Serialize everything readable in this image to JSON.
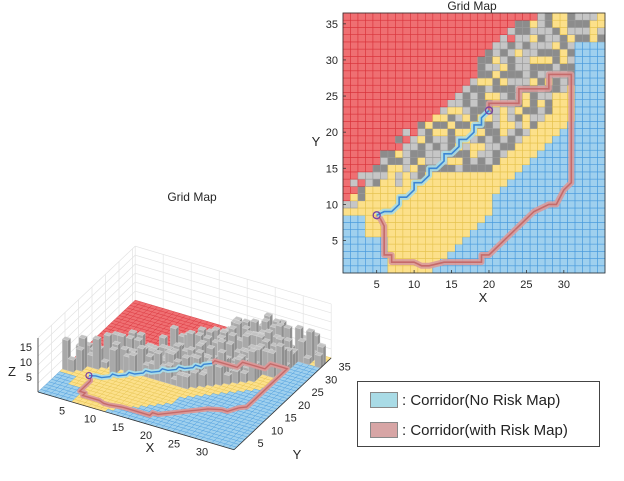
{
  "chart_data": [
    {
      "type": "heatmap",
      "title": "Grid Map",
      "xlabel": "X",
      "ylabel": "Y",
      "xlim": [
        0.5,
        35.5
      ],
      "ylim": [
        0.5,
        36.5
      ],
      "xticks": [
        5,
        10,
        15,
        20,
        25,
        30
      ],
      "yticks": [
        5,
        10,
        15,
        20,
        25,
        30,
        35
      ],
      "grid": true,
      "cell_classes": [
        "safe",
        "risk-low",
        "obstacle",
        "risk-high"
      ],
      "series": [
        {
          "name": "Corridor(No Risk Map)",
          "x": [
            5,
            6,
            7,
            8,
            8,
            9,
            10,
            10,
            11,
            12,
            12,
            13,
            14,
            14,
            15,
            16,
            16,
            17,
            18,
            18,
            19,
            19,
            20
          ],
          "y": [
            8.5,
            9,
            9,
            10,
            11,
            11,
            12,
            13,
            13,
            14,
            15,
            15,
            16,
            17,
            17,
            18,
            19,
            19,
            20,
            21,
            21,
            22,
            23
          ]
        },
        {
          "name": "Corridor(with Risk Map)",
          "x": [
            5,
            5.5,
            6,
            6,
            7,
            7,
            10,
            11,
            12,
            14,
            15,
            17,
            19,
            19,
            20,
            22,
            23,
            25,
            26,
            28,
            29,
            30,
            31,
            31,
            30,
            28,
            28,
            24,
            24,
            22,
            20,
            20,
            20
          ],
          "y": [
            8.5,
            8,
            7,
            3,
            3,
            2,
            2,
            1.5,
            1.5,
            2,
            2,
            2,
            2,
            3,
            3,
            5,
            6,
            8,
            9,
            10,
            10,
            12,
            13,
            28,
            28,
            28,
            26,
            26,
            24,
            24,
            24,
            23.5,
            23
          ]
        }
      ]
    },
    {
      "type": "heatmap",
      "title": "Grid Map",
      "xlabel": "X",
      "ylabel": "Y",
      "zlabel": "Z",
      "xticks": [
        5,
        10,
        15,
        20,
        25,
        30
      ],
      "yticks": [
        5,
        10,
        15,
        20,
        25,
        30,
        35
      ],
      "zticks": [
        5,
        10,
        15
      ]
    }
  ],
  "legend": {
    "items": [
      {
        "label": ": Corridor(No Risk Map)",
        "color": "#a9dbe6"
      },
      {
        "label": ": Corridor(with Risk Map)",
        "color": "#d7a5a5"
      }
    ]
  },
  "colors": {
    "safe": "#9fd0ee",
    "risk_low": "#fce08a",
    "risk_high": "#ef6f72",
    "obstacle_dark": "#8c8c8c",
    "obstacle_light": "#c6c6c6",
    "path_no_risk": "#3a86d6",
    "path_risk": "#c56a6a"
  }
}
